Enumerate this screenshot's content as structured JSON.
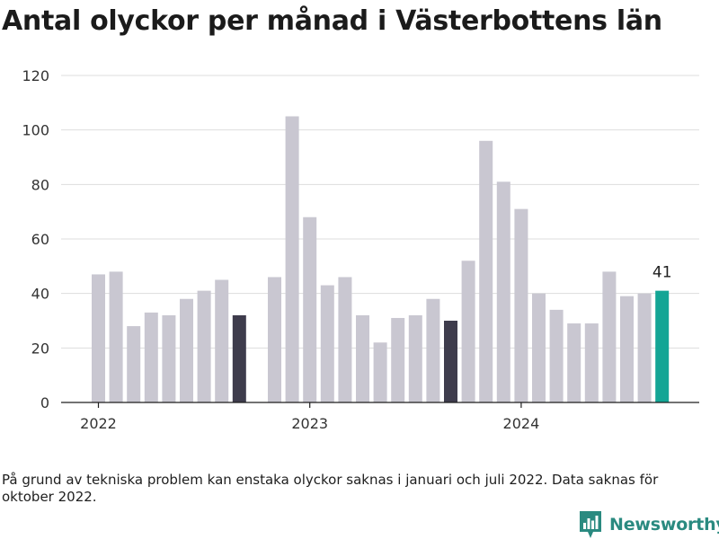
{
  "title": "Antal olyckor per månad i Västerbottens län",
  "footnote": "På grund av tekniska problem kan enstaka olyckor saknas i januari och juli 2022. Data saknas för oktober 2022.",
  "brand": {
    "name": "Newsworthy",
    "icon": "newsworthy-logo-icon"
  },
  "chart_data": {
    "type": "bar",
    "title": "Antal olyckor per månad i Västerbottens län",
    "xlabel": "",
    "ylabel": "",
    "ylim": [
      0,
      120
    ],
    "yticks": [
      0,
      20,
      40,
      60,
      80,
      100,
      120
    ],
    "xticks": [
      {
        "label": "2022",
        "index": 0
      },
      {
        "label": "2023",
        "index": 12
      },
      {
        "label": "2024",
        "index": 24
      }
    ],
    "grid": true,
    "colors": {
      "default": "#c9c7d1",
      "highlight": "#3e3c4c",
      "latest": "#13a595"
    },
    "categories": [
      "2022-01",
      "2022-02",
      "2022-03",
      "2022-04",
      "2022-05",
      "2022-06",
      "2022-07",
      "2022-08",
      "2022-09",
      "2022-10",
      "2022-11",
      "2022-12",
      "2023-01",
      "2023-02",
      "2023-03",
      "2023-04",
      "2023-05",
      "2023-06",
      "2023-07",
      "2023-08",
      "2023-09",
      "2023-10",
      "2023-11",
      "2023-12",
      "2024-01",
      "2024-02",
      "2024-03",
      "2024-04",
      "2024-05",
      "2024-06",
      "2024-07",
      "2024-08",
      "2024-09"
    ],
    "values": [
      47,
      48,
      28,
      33,
      32,
      38,
      41,
      45,
      32,
      null,
      46,
      105,
      68,
      43,
      46,
      32,
      22,
      31,
      32,
      38,
      30,
      52,
      96,
      81,
      71,
      40,
      34,
      29,
      29,
      48,
      39,
      40,
      41
    ],
    "highlight": [
      "2022-09",
      "2023-09"
    ],
    "latest": "2024-09",
    "annotations": [
      {
        "category": "2024-09",
        "text": "41"
      }
    ]
  }
}
